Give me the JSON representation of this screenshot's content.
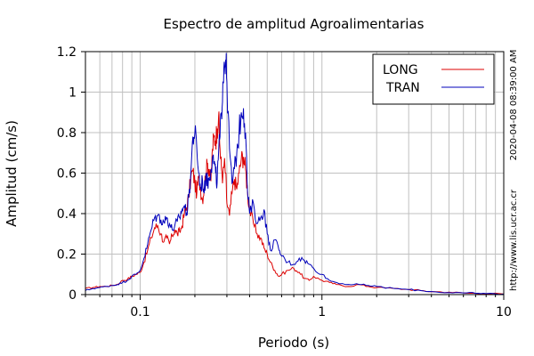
{
  "chart_data": {
    "type": "line",
    "title": "Espectro de amplitud Agroalimentarias",
    "xlabel": "Periodo (s)",
    "ylabel": "Amplitud (cm/s)",
    "x_scale": "log",
    "xlim": [
      0.05,
      10
    ],
    "ylim": [
      0,
      1.2
    ],
    "x_ticks": [
      {
        "value": 0.1,
        "label": "0.1"
      },
      {
        "value": 1,
        "label": "1"
      },
      {
        "value": 10,
        "label": "10"
      }
    ],
    "y_ticks": [
      {
        "value": 0,
        "label": "0"
      },
      {
        "value": 0.2,
        "label": "0.2"
      },
      {
        "value": 0.4,
        "label": "0.4"
      },
      {
        "value": 0.6,
        "label": "0.6"
      },
      {
        "value": 0.8,
        "label": "0.8"
      },
      {
        "value": 1.0,
        "label": "1"
      },
      {
        "value": 1.2,
        "label": "1.2"
      }
    ],
    "grid": true,
    "legend_position": "top-right",
    "timestamp": "2020-04-08 08:39:00 AM",
    "source": "http://www.lis.ucr.ac.cr",
    "series": [
      {
        "name": "LONG",
        "color": "#dd0000",
        "points": [
          [
            0.05,
            0.03
          ],
          [
            0.055,
            0.035
          ],
          [
            0.06,
            0.04
          ],
          [
            0.065,
            0.04
          ],
          [
            0.07,
            0.045
          ],
          [
            0.075,
            0.05
          ],
          [
            0.08,
            0.07
          ],
          [
            0.085,
            0.075
          ],
          [
            0.09,
            0.09
          ],
          [
            0.095,
            0.1
          ],
          [
            0.1,
            0.11
          ],
          [
            0.105,
            0.16
          ],
          [
            0.11,
            0.22
          ],
          [
            0.115,
            0.28
          ],
          [
            0.12,
            0.33
          ],
          [
            0.125,
            0.34
          ],
          [
            0.13,
            0.3
          ],
          [
            0.135,
            0.26
          ],
          [
            0.14,
            0.28
          ],
          [
            0.145,
            0.25
          ],
          [
            0.15,
            0.29
          ],
          [
            0.155,
            0.32
          ],
          [
            0.16,
            0.3
          ],
          [
            0.165,
            0.31
          ],
          [
            0.17,
            0.34
          ],
          [
            0.175,
            0.4
          ],
          [
            0.18,
            0.43
          ],
          [
            0.185,
            0.48
          ],
          [
            0.19,
            0.58
          ],
          [
            0.195,
            0.61
          ],
          [
            0.2,
            0.55
          ],
          [
            0.205,
            0.5
          ],
          [
            0.21,
            0.58
          ],
          [
            0.215,
            0.52
          ],
          [
            0.22,
            0.47
          ],
          [
            0.225,
            0.53
          ],
          [
            0.23,
            0.6
          ],
          [
            0.235,
            0.65
          ],
          [
            0.24,
            0.62
          ],
          [
            0.245,
            0.56
          ],
          [
            0.25,
            0.72
          ],
          [
            0.255,
            0.78
          ],
          [
            0.26,
            0.76
          ],
          [
            0.265,
            0.82
          ],
          [
            0.27,
            0.88
          ],
          [
            0.275,
            0.72
          ],
          [
            0.28,
            0.62
          ],
          [
            0.285,
            0.58
          ],
          [
            0.29,
            0.65
          ],
          [
            0.295,
            0.6
          ],
          [
            0.3,
            0.45
          ],
          [
            0.31,
            0.39
          ],
          [
            0.32,
            0.5
          ],
          [
            0.33,
            0.57
          ],
          [
            0.34,
            0.52
          ],
          [
            0.35,
            0.6
          ],
          [
            0.36,
            0.67
          ],
          [
            0.37,
            0.68
          ],
          [
            0.38,
            0.62
          ],
          [
            0.39,
            0.5
          ],
          [
            0.4,
            0.42
          ],
          [
            0.42,
            0.35
          ],
          [
            0.44,
            0.3
          ],
          [
            0.46,
            0.28
          ],
          [
            0.48,
            0.23
          ],
          [
            0.5,
            0.2
          ],
          [
            0.52,
            0.16
          ],
          [
            0.55,
            0.12
          ],
          [
            0.58,
            0.09
          ],
          [
            0.6,
            0.1
          ],
          [
            0.65,
            0.12
          ],
          [
            0.7,
            0.13
          ],
          [
            0.75,
            0.11
          ],
          [
            0.8,
            0.08
          ],
          [
            0.85,
            0.07
          ],
          [
            0.9,
            0.09
          ],
          [
            1.0,
            0.07
          ],
          [
            1.1,
            0.06
          ],
          [
            1.2,
            0.05
          ],
          [
            1.4,
            0.04
          ],
          [
            1.6,
            0.05
          ],
          [
            1.8,
            0.04
          ],
          [
            2.0,
            0.035
          ],
          [
            2.5,
            0.03
          ],
          [
            3.0,
            0.025
          ],
          [
            3.5,
            0.02
          ],
          [
            4.0,
            0.015
          ],
          [
            5.0,
            0.012
          ],
          [
            6.0,
            0.008
          ],
          [
            7.0,
            0.006
          ],
          [
            8.0,
            0.005
          ],
          [
            10.0,
            0.003
          ]
        ]
      },
      {
        "name": "TRAN",
        "color": "#0000bb",
        "points": [
          [
            0.05,
            0.02
          ],
          [
            0.055,
            0.03
          ],
          [
            0.06,
            0.035
          ],
          [
            0.065,
            0.04
          ],
          [
            0.07,
            0.045
          ],
          [
            0.075,
            0.05
          ],
          [
            0.08,
            0.06
          ],
          [
            0.085,
            0.07
          ],
          [
            0.09,
            0.09
          ],
          [
            0.095,
            0.1
          ],
          [
            0.1,
            0.12
          ],
          [
            0.105,
            0.18
          ],
          [
            0.11,
            0.25
          ],
          [
            0.115,
            0.32
          ],
          [
            0.12,
            0.38
          ],
          [
            0.125,
            0.39
          ],
          [
            0.13,
            0.37
          ],
          [
            0.135,
            0.36
          ],
          [
            0.14,
            0.38
          ],
          [
            0.145,
            0.35
          ],
          [
            0.15,
            0.32
          ],
          [
            0.155,
            0.34
          ],
          [
            0.16,
            0.36
          ],
          [
            0.165,
            0.38
          ],
          [
            0.17,
            0.42
          ],
          [
            0.175,
            0.44
          ],
          [
            0.18,
            0.4
          ],
          [
            0.185,
            0.48
          ],
          [
            0.19,
            0.6
          ],
          [
            0.195,
            0.78
          ],
          [
            0.2,
            0.8
          ],
          [
            0.205,
            0.72
          ],
          [
            0.21,
            0.6
          ],
          [
            0.215,
            0.52
          ],
          [
            0.22,
            0.57
          ],
          [
            0.225,
            0.5
          ],
          [
            0.23,
            0.6
          ],
          [
            0.235,
            0.55
          ],
          [
            0.24,
            0.58
          ],
          [
            0.245,
            0.62
          ],
          [
            0.25,
            0.68
          ],
          [
            0.255,
            0.65
          ],
          [
            0.26,
            0.6
          ],
          [
            0.265,
            0.55
          ],
          [
            0.27,
            0.7
          ],
          [
            0.275,
            0.78
          ],
          [
            0.28,
            0.9
          ],
          [
            0.285,
            1.05
          ],
          [
            0.29,
            1.15
          ],
          [
            0.295,
            1.16
          ],
          [
            0.3,
            1.05
          ],
          [
            0.31,
            0.72
          ],
          [
            0.32,
            0.55
          ],
          [
            0.33,
            0.62
          ],
          [
            0.34,
            0.7
          ],
          [
            0.35,
            0.8
          ],
          [
            0.36,
            0.9
          ],
          [
            0.37,
            0.92
          ],
          [
            0.38,
            0.8
          ],
          [
            0.39,
            0.5
          ],
          [
            0.4,
            0.4
          ],
          [
            0.42,
            0.45
          ],
          [
            0.44,
            0.35
          ],
          [
            0.46,
            0.38
          ],
          [
            0.48,
            0.42
          ],
          [
            0.5,
            0.3
          ],
          [
            0.52,
            0.22
          ],
          [
            0.55,
            0.27
          ],
          [
            0.58,
            0.22
          ],
          [
            0.6,
            0.19
          ],
          [
            0.65,
            0.16
          ],
          [
            0.7,
            0.15
          ],
          [
            0.75,
            0.18
          ],
          [
            0.8,
            0.17
          ],
          [
            0.85,
            0.15
          ],
          [
            0.9,
            0.13
          ],
          [
            1.0,
            0.1
          ],
          [
            1.1,
            0.07
          ],
          [
            1.2,
            0.06
          ],
          [
            1.4,
            0.05
          ],
          [
            1.6,
            0.05
          ],
          [
            1.8,
            0.045
          ],
          [
            2.0,
            0.04
          ],
          [
            2.5,
            0.03
          ],
          [
            3.0,
            0.025
          ],
          [
            3.5,
            0.02
          ],
          [
            4.0,
            0.015
          ],
          [
            5.0,
            0.01
          ],
          [
            6.0,
            0.008
          ],
          [
            7.0,
            0.006
          ],
          [
            8.0,
            0.005
          ],
          [
            10.0,
            0.003
          ]
        ]
      }
    ]
  }
}
